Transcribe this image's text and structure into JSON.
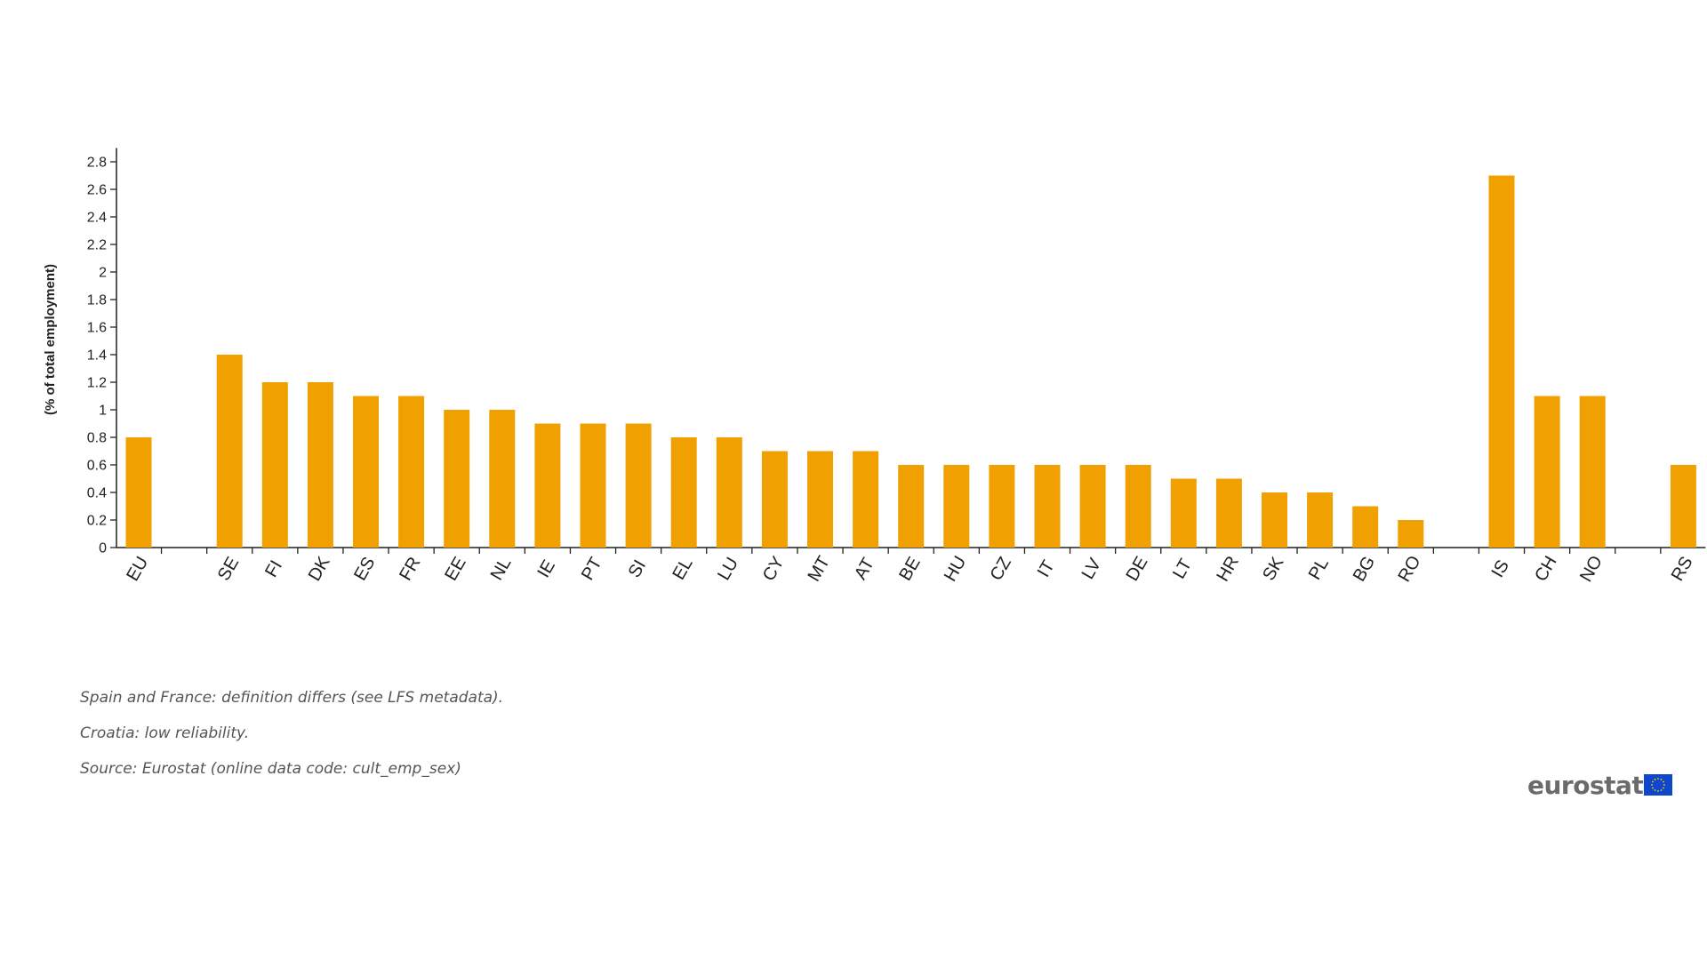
{
  "chart_data": {
    "type": "bar",
    "title": "",
    "xlabel": "",
    "ylabel": "(% of total employment)",
    "ylim": [
      0,
      2.9
    ],
    "yticks": [
      "0",
      "0.2",
      "0.4",
      "0.6",
      "0.8",
      "1",
      "1.2",
      "1.4",
      "1.6",
      "1.8",
      "2",
      "2.2",
      "2.4",
      "2.6",
      "2.8"
    ],
    "grid": false,
    "legend": "none",
    "bar_color": "#f0a000",
    "categories": [
      "EU",
      "",
      "SE",
      "FI",
      "DK",
      "ES",
      "FR",
      "EE",
      "NL",
      "IE",
      "PT",
      "SI",
      "EL",
      "LU",
      "CY",
      "MT",
      "AT",
      "BE",
      "HU",
      "CZ",
      "IT",
      "LV",
      "DE",
      "LT",
      "HR",
      "SK",
      "PL",
      "BG",
      "RO",
      "",
      "IS",
      "CH",
      "NO",
      "",
      "RS"
    ],
    "values": [
      0.8,
      null,
      1.4,
      1.2,
      1.2,
      1.1,
      1.1,
      1.0,
      1.0,
      0.9,
      0.9,
      0.9,
      0.8,
      0.8,
      0.7,
      0.7,
      0.7,
      0.6,
      0.6,
      0.6,
      0.6,
      0.6,
      0.6,
      0.5,
      0.5,
      0.4,
      0.4,
      0.3,
      0.2,
      null,
      2.7,
      1.1,
      1.1,
      null,
      0.6
    ]
  },
  "footnotes": [
    "Spain and France: definition differs (see LFS metadata).",
    "Croatia: low reliability.",
    "Source: Eurostat (online data code: cult_emp_sex)"
  ],
  "logo": {
    "text": "eurostat",
    "flag_color": "#0e47cb",
    "star_color": "#ffcc00"
  }
}
